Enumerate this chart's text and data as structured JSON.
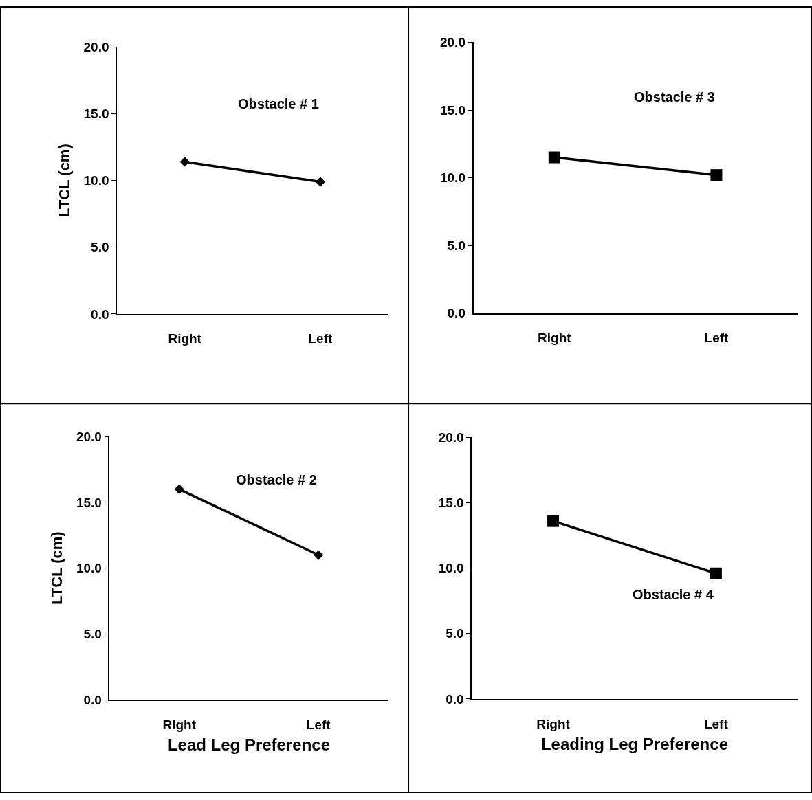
{
  "chart_data": [
    {
      "type": "line",
      "ylabel": "LTCL (cm)",
      "annotations": [
        "Obstacle # 1"
      ],
      "categories": [
        "Right",
        "Left"
      ],
      "series": [
        {
          "color": "#000000",
          "values": [
            11.4,
            9.9
          ]
        }
      ],
      "marker": "diamond",
      "ylim": [
        0,
        20
      ],
      "yticks": [
        {
          "value": 0,
          "label": "0.0"
        },
        {
          "value": 5,
          "label": "5.0"
        },
        {
          "value": 10,
          "label": "10.0"
        },
        {
          "value": 15,
          "label": "15.0"
        },
        {
          "value": 20,
          "label": "20.0"
        }
      ]
    },
    {
      "type": "line",
      "annotations": [
        "Obstacle # 3"
      ],
      "categories": [
        "Right",
        "Left"
      ],
      "series": [
        {
          "color": "#000000",
          "values": [
            11.5,
            10.2
          ]
        }
      ],
      "marker": "square",
      "ylim": [
        0,
        20
      ],
      "yticks": [
        {
          "value": 0,
          "label": "0.0"
        },
        {
          "value": 5,
          "label": "5.0"
        },
        {
          "value": 10,
          "label": "10.0"
        },
        {
          "value": 15,
          "label": "15.0"
        },
        {
          "value": 20,
          "label": "20.0"
        }
      ]
    },
    {
      "type": "line",
      "ylabel": "LTCL (cm)",
      "xlabel": "Lead Leg Preference",
      "annotations": [
        "Obstacle # 2"
      ],
      "categories": [
        "Right",
        "Left"
      ],
      "series": [
        {
          "color": "#000000",
          "values": [
            16.0,
            11.0
          ]
        }
      ],
      "marker": "diamond",
      "ylim": [
        0,
        20
      ],
      "yticks": [
        {
          "value": 0,
          "label": "0.0"
        },
        {
          "value": 5,
          "label": "5.0"
        },
        {
          "value": 10,
          "label": "10.0"
        },
        {
          "value": 15,
          "label": "15.0"
        },
        {
          "value": 20,
          "label": "20.0"
        }
      ]
    },
    {
      "type": "line",
      "xlabel": "Leading Leg Preference",
      "annotations": [
        "Obstacle # 4"
      ],
      "categories": [
        "Right",
        "Left"
      ],
      "series": [
        {
          "color": "#000000",
          "values": [
            13.6,
            9.6
          ]
        }
      ],
      "marker": "square",
      "ylim": [
        0,
        20
      ],
      "yticks": [
        {
          "value": 0,
          "label": "0.0"
        },
        {
          "value": 5,
          "label": "5.0"
        },
        {
          "value": 10,
          "label": "10.0"
        },
        {
          "value": 15,
          "label": "15.0"
        },
        {
          "value": 20,
          "label": "20.0"
        }
      ]
    }
  ]
}
